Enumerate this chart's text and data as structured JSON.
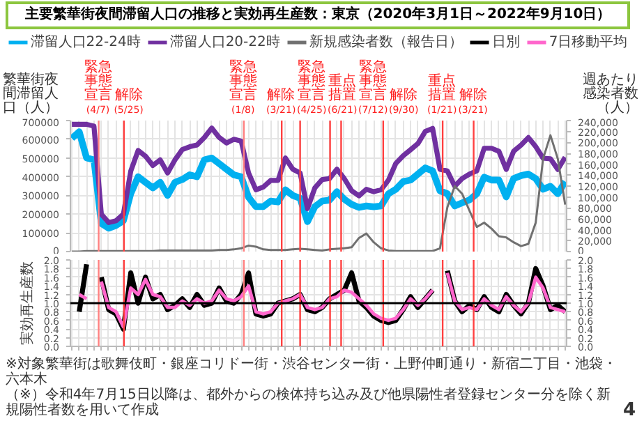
{
  "chart_data": [
    {
      "type": "line",
      "title": "主要繁華街夜間滞留人口の推移と実効再生産数：東京（2020年3月1日～2022年9月10日）",
      "ylabel": "繁華街夜間滞留人口（人）",
      "y2label": "週あたり感染者数（人）",
      "categories": [
        null,
        null,
        null,
        null,
        null,
        null,
        null,
        null,
        null,
        null,
        null,
        null,
        null,
        null,
        null,
        null,
        null,
        null,
        null,
        null,
        null,
        null,
        null,
        null,
        null,
        null,
        null,
        null,
        null,
        null,
        null,
        null,
        null,
        null,
        null,
        null,
        null,
        null,
        null,
        null,
        null,
        null,
        null,
        null,
        null,
        null,
        null,
        null,
        null,
        null,
        null,
        null,
        null,
        null,
        null,
        null,
        null,
        null,
        null,
        null,
        null,
        null,
        null,
        null,
        null,
        null,
        null,
        null
      ],
      "series": [
        {
          "name": "滞留人口22-24時",
          "color": "#00b0f0",
          "values": [
            605000,
            640000,
            500000,
            490000,
            150000,
            125000,
            140000,
            165000,
            310000,
            400000,
            370000,
            340000,
            370000,
            300000,
            370000,
            385000,
            410000,
            400000,
            490000,
            500000,
            470000,
            440000,
            410000,
            400000,
            290000,
            240000,
            240000,
            270000,
            265000,
            330000,
            300000,
            285000,
            160000,
            240000,
            270000,
            275000,
            320000,
            280000,
            252000,
            236000,
            244000,
            239000,
            244000,
            309000,
            333000,
            374000,
            382000,
            414000,
            447000,
            431000,
            325000,
            309000,
            244000,
            260000,
            276000,
            309000,
            398000,
            382000,
            382000,
            292000,
            390000,
            406000,
            414000,
            390000,
            333000,
            349000,
            309000,
            374000
          ]
        },
        {
          "name": "滞留人口20-22時",
          "color": "#7030a0",
          "values": [
            680000,
            680000,
            680000,
            670000,
            200000,
            155000,
            165000,
            200000,
            430000,
            540000,
            510000,
            460000,
            490000,
            420000,
            490000,
            545000,
            560000,
            570000,
            610000,
            660000,
            610000,
            580000,
            600000,
            590000,
            420000,
            330000,
            345000,
            380000,
            380000,
            500000,
            440000,
            420000,
            230000,
            340000,
            385000,
            390000,
            440000,
            390000,
            325000,
            298000,
            333000,
            320000,
            330000,
            382000,
            471000,
            512000,
            544000,
            577000,
            642000,
            658000,
            439000,
            431000,
            349000,
            390000,
            414000,
            431000,
            552000,
            552000,
            536000,
            439000,
            536000,
            569000,
            609000,
            561000,
            499000,
            496000,
            439000,
            504000
          ]
        },
        {
          "name": "新規感染者数（報告日）",
          "color": "#707070",
          "axis": "y2",
          "values": [
            0,
            0,
            1000,
            1000,
            1000,
            1000,
            1000,
            1000,
            1000,
            1000,
            1000,
            1000,
            2000,
            2000,
            2000,
            2000,
            2000,
            2000,
            2000,
            2000,
            3000,
            3000,
            4000,
            6000,
            11000,
            9000,
            4000,
            3000,
            3000,
            3000,
            4000,
            5000,
            4000,
            3000,
            2000,
            4000,
            5000,
            6000,
            8000,
            25000,
            33000,
            17000,
            6000,
            2000,
            1000,
            1000,
            1000,
            1000,
            1000,
            1000,
            6000,
            81000,
            120000,
            106000,
            75000,
            45000,
            53000,
            42000,
            28000,
            26000,
            17000,
            10000,
            14000,
            53000,
            170000,
            213000,
            170000,
            86000
          ]
        }
      ],
      "ylim": [
        0,
        700000
      ],
      "yticks": [
        0,
        100000,
        200000,
        300000,
        400000,
        500000,
        600000,
        700000
      ],
      "y2lim": [
        0,
        240000
      ],
      "y2ticks": [
        {
          "value": 0,
          "label": "0"
        },
        {
          "value": 20000,
          "label": "20,000"
        },
        {
          "value": 40000,
          "label": "40,000"
        },
        {
          "value": 60000,
          "label": "60,000"
        },
        {
          "value": 80000,
          "label": "80,000"
        },
        {
          "value": 100000,
          "label": "100,000"
        },
        {
          "value": 120000,
          "label": "120,000"
        },
        {
          "value": 140000,
          "label": "140,000"
        },
        {
          "value": 160000,
          "label": "160,000"
        },
        {
          "value": 180000,
          "label": "180,000"
        },
        {
          "value": 200000,
          "label": "200,000"
        },
        {
          "value": 220000,
          "label": "220,000"
        },
        {
          "value": 240000,
          "label": "240,000"
        }
      ],
      "annotations": [
        "緊急事態宣言(4/7)",
        "解除(5/25)",
        "緊急事態宣言(1/8)",
        "解除(3/21)",
        "緊急事態宣言(4/25)",
        "重点措置(6/21)",
        "緊急事態宣言(7/12)",
        "解除(9/30)",
        "重点措置(1/21)",
        "解除(3/21)"
      ],
      "grid": true,
      "legend": "top",
      "tick_labels": "y"
    },
    {
      "type": "line",
      "ylabel": "実効再生産数",
      "categories": [
        null,
        null,
        null,
        null,
        null,
        null,
        null,
        null,
        null,
        null,
        null,
        null,
        null,
        null,
        null,
        null,
        null,
        null,
        null,
        null,
        null,
        null,
        null,
        null,
        null,
        null,
        null,
        null,
        null,
        null,
        null,
        null,
        null,
        null,
        null,
        null,
        null,
        null,
        null,
        null,
        null,
        null,
        null,
        null,
        null,
        null,
        null,
        null,
        null,
        null,
        null,
        null,
        null,
        null,
        null,
        null,
        null,
        null,
        null,
        null,
        null,
        null,
        null,
        null,
        null,
        null,
        null,
        null
      ],
      "series": [
        {
          "name": "日別",
          "color": "#000000",
          "values": [
            null,
            0.8,
            1.9,
            null,
            1.6,
            0.85,
            0.75,
            0.4,
            1.7,
            1.0,
            1.6,
            1.1,
            1.2,
            0.85,
            0.95,
            1.1,
            0.9,
            1.2,
            0.95,
            1.0,
            1.35,
            1.05,
            1.0,
            1.2,
            1.7,
            0.75,
            0.7,
            0.75,
            1.0,
            1.05,
            1.1,
            1.2,
            0.85,
            0.8,
            0.9,
            1.1,
            1.2,
            1.3,
            1.7,
            1.05,
            0.9,
            0.7,
            0.6,
            0.55,
            0.6,
            0.85,
            1.15,
            0.9,
            1.1,
            1.3,
            null,
            1.75,
            1.05,
            0.8,
            0.95,
            0.85,
            1.15,
            0.9,
            0.8,
            1.2,
            0.95,
            0.75,
            1.0,
            1.8,
            1.4,
            0.85,
            0.95,
            0.8
          ]
        },
        {
          "name": "7日移動平均",
          "color": "#ff66cc",
          "values": [
            null,
            1.2,
            1.1,
            null,
            1.5,
            0.9,
            0.8,
            0.45,
            1.35,
            1.2,
            1.55,
            1.2,
            1.15,
            0.9,
            0.9,
            1.05,
            0.95,
            1.1,
            1.0,
            1.05,
            1.3,
            1.1,
            1.05,
            1.15,
            1.4,
            0.8,
            0.75,
            0.8,
            1.0,
            1.05,
            1.1,
            1.2,
            0.9,
            0.85,
            0.9,
            1.1,
            1.15,
            1.3,
            1.25,
            1.1,
            0.95,
            0.75,
            0.65,
            0.6,
            0.65,
            0.85,
            1.1,
            0.95,
            1.1,
            1.3,
            null,
            1.7,
            1.05,
            0.85,
            0.9,
            0.85,
            1.1,
            0.95,
            0.85,
            1.15,
            0.95,
            0.8,
            1.0,
            1.6,
            1.35,
            0.9,
            0.85,
            0.8
          ]
        }
      ],
      "ylim": [
        0,
        2
      ],
      "yticks": [
        {
          "value": 0,
          "label": "0.0"
        },
        {
          "value": 0.2,
          "label": "0.2"
        },
        {
          "value": 0.4,
          "label": "0.4"
        },
        {
          "value": 0.6,
          "label": "0.6"
        },
        {
          "value": 0.8,
          "label": "0.8"
        },
        {
          "value": 1,
          "label": "1.0"
        },
        {
          "value": 1.2,
          "label": "1.2"
        },
        {
          "value": 1.4,
          "label": "1.4"
        },
        {
          "value": 1.6,
          "label": "1.6"
        },
        {
          "value": 1.8,
          "label": "1.8"
        },
        {
          "value": 2,
          "label": "2.0"
        }
      ],
      "y2lim": [
        0,
        2
      ],
      "y2ticks": [
        {
          "value": 0,
          "label": "0.0"
        },
        {
          "value": 0.2,
          "label": "0.2"
        },
        {
          "value": 0.4,
          "label": "0.4"
        },
        {
          "value": 0.6,
          "label": "0.6"
        },
        {
          "value": 0.8,
          "label": "0.8"
        },
        {
          "value": 1,
          "label": "1.0"
        },
        {
          "value": 1.2,
          "label": "1.2"
        },
        {
          "value": 1.4,
          "label": "1.4"
        },
        {
          "value": 1.6,
          "label": "1.6"
        },
        {
          "value": 1.8,
          "label": "1.8"
        },
        {
          "value": 2,
          "label": "2.0"
        }
      ],
      "ref_lines": [
        {
          "axis": "y",
          "value": 1,
          "color": "#000000"
        }
      ],
      "grid": true,
      "legend": "top",
      "tick_labels": "y",
      "annotations": [
        "※対象繁華街は歌舞伎町・銀座コリドー街・渋谷センター街・上野仲町通り・新宿二丁目・池袋・六本木",
        "（※）令和4年7月15日以降は、都外からの検体持ち込み及び他県陽性者登録センター分を除く新規陽性者数を用いて作成",
        "4"
      ]
    }
  ]
}
